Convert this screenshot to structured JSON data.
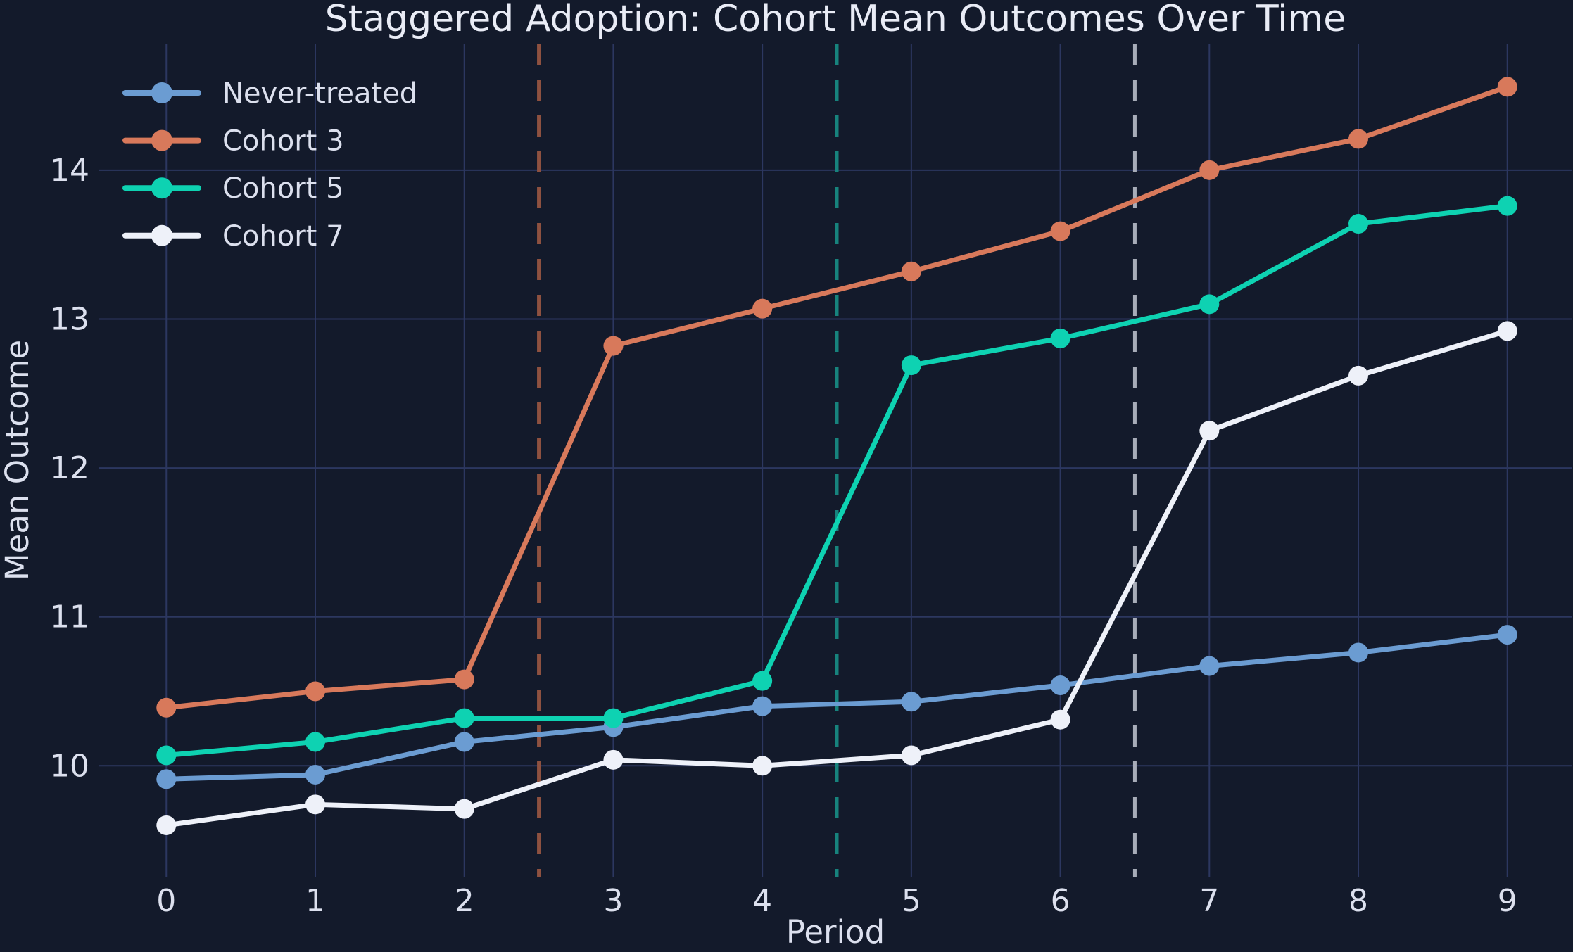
{
  "chart_data": {
    "type": "line",
    "title": "Staggered Adoption: Cohort Mean Outcomes Over Time",
    "xlabel": "Period",
    "ylabel": "Mean Outcome",
    "x": [
      0,
      1,
      2,
      3,
      4,
      5,
      6,
      7,
      8,
      9
    ],
    "xtick_labels": [
      "0",
      "1",
      "2",
      "3",
      "4",
      "5",
      "6",
      "7",
      "8",
      "9"
    ],
    "yticks": [
      10,
      11,
      12,
      13,
      14
    ],
    "xlim": [
      -0.45,
      9.45
    ],
    "ylim": [
      9.25,
      14.85
    ],
    "grid": true,
    "legend_position": "upper-left",
    "series": [
      {
        "name": "Never-treated",
        "color": "#6b9cd2",
        "values": [
          9.91,
          9.94,
          10.16,
          10.26,
          10.4,
          10.43,
          10.54,
          10.67,
          10.76,
          10.88
        ]
      },
      {
        "name": "Cohort 3",
        "color": "#d8795b",
        "values": [
          10.39,
          10.5,
          10.58,
          12.82,
          13.07,
          13.32,
          13.59,
          14.0,
          14.21,
          14.56
        ]
      },
      {
        "name": "Cohort 5",
        "color": "#0ed2b2",
        "values": [
          10.07,
          10.16,
          10.32,
          10.32,
          10.57,
          12.69,
          12.87,
          13.1,
          13.64,
          13.76
        ]
      },
      {
        "name": "Cohort 7",
        "color": "#eef1f9",
        "values": [
          9.6,
          9.74,
          9.71,
          10.04,
          10.0,
          10.07,
          10.31,
          12.25,
          12.62,
          12.92
        ]
      }
    ],
    "vlines": [
      {
        "x": 2.5,
        "color": "#8e5140",
        "style": "dashed"
      },
      {
        "x": 4.5,
        "color": "#17837d",
        "style": "dashed"
      },
      {
        "x": 6.5,
        "color": "#a7acb8",
        "style": "dashed"
      }
    ],
    "colors": {
      "background": "#131a2b",
      "grid": "#2c3760",
      "text": "#dce0ee",
      "title": "#e9ecf6"
    }
  }
}
